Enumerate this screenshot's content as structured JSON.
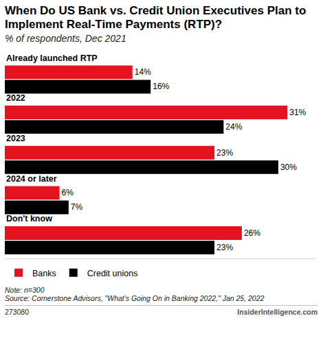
{
  "chart_data": {
    "type": "bar",
    "title": "When Do US Bank vs. Credit Union Executives Plan to Implement Real-Time Payments (RTP)?",
    "subtitle": "% of respondents, Dec 2021",
    "orientation": "horizontal",
    "categories": [
      "Already launched RTP",
      "2022",
      "2023",
      "2024 or later",
      "Don't know"
    ],
    "series": [
      {
        "name": "Banks",
        "color": "#e5121f",
        "values": [
          14,
          31,
          23,
          6,
          26
        ],
        "value_labels": [
          "14%",
          "31%",
          "23%",
          "6%",
          "26%"
        ]
      },
      {
        "name": "Credit unions",
        "color": "#000000",
        "values": [
          16,
          24,
          30,
          7,
          23
        ],
        "value_labels": [
          "16%",
          "24%",
          "30%",
          "7%",
          "23%"
        ]
      }
    ],
    "xlim": [
      0,
      34
    ],
    "grid": false,
    "data_labels": true,
    "tick_labels": false,
    "legend": "bottom-left",
    "note": "Note: n=300",
    "source": "Source: Cornerstone Advisors, \"What's Going On in Banking 2022,\" Jan 25, 2022",
    "chart_id": "273080",
    "brand": "InsiderIntelligence.com"
  }
}
